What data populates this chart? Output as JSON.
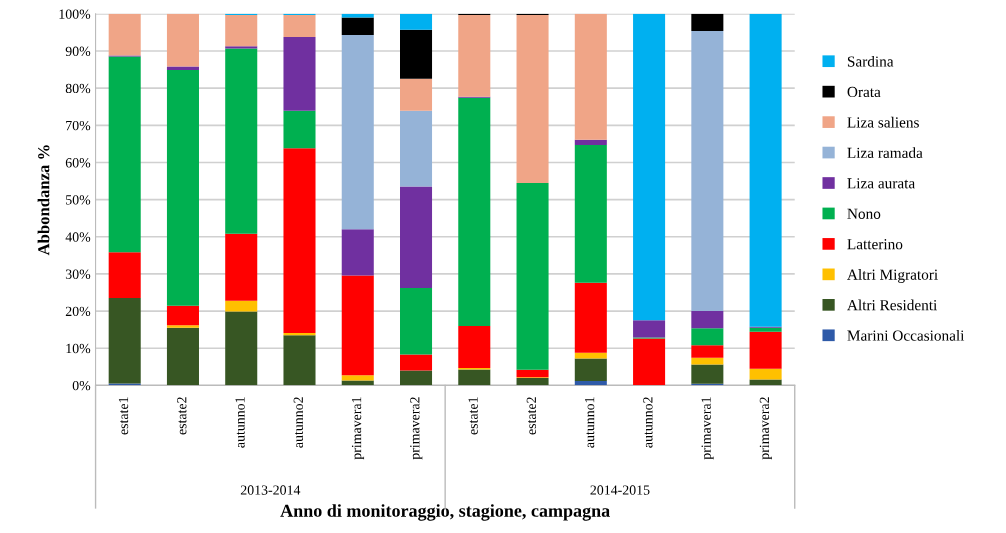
{
  "chart_data": {
    "type": "bar",
    "stacked": true,
    "xlabel": "Anno di monitoraggio, stagione, campagna",
    "ylabel": "Abbondanza %",
    "categories": [
      "estate1",
      "estate2",
      "autunno1",
      "autunno2",
      "primavera1",
      "primavera2",
      "estate1",
      "estate2",
      "autunno1",
      "autunno2",
      "primavera1",
      "primavera2"
    ],
    "annotations": [
      "2013-2014",
      "2014-2015"
    ],
    "ylim": [
      0,
      100
    ],
    "yticks": [
      {
        "value": 0,
        "label": "0%"
      },
      {
        "value": 10,
        "label": "10%"
      },
      {
        "value": 20,
        "label": "20%"
      },
      {
        "value": 30,
        "label": "30%"
      },
      {
        "value": 40,
        "label": "40%"
      },
      {
        "value": 50,
        "label": "50%"
      },
      {
        "value": 60,
        "label": "60%"
      },
      {
        "value": 70,
        "label": "70%"
      },
      {
        "value": 80,
        "label": "80%"
      },
      {
        "value": 90,
        "label": "90%"
      },
      {
        "value": 100,
        "label": "100%"
      }
    ],
    "grid": "y",
    "legend": "right",
    "series": [
      {
        "name": "Marini Occasionali",
        "color": "#2e5aa8",
        "values": [
          0.5,
          0,
          0,
          0,
          0,
          0,
          0,
          0,
          1.2,
          0,
          0.4,
          0
        ]
      },
      {
        "name": "Altri Residenti",
        "color": "#375623",
        "values": [
          23,
          15.5,
          19.9,
          13.5,
          1.3,
          4,
          4.3,
          2,
          6,
          0,
          5.2,
          1.6
        ]
      },
      {
        "name": "Altri Migratori",
        "color": "#ffc000",
        "values": [
          0,
          0.7,
          2.9,
          0.6,
          1.4,
          0,
          0.4,
          0.2,
          1.6,
          0,
          1.8,
          2.9
        ]
      },
      {
        "name": "Latterino",
        "color": "#ff0000",
        "values": [
          12.3,
          5.2,
          18,
          49.7,
          26.9,
          4.3,
          11.3,
          2,
          18.8,
          12.6,
          3.4,
          9.9
        ]
      },
      {
        "name": "Nono",
        "color": "#00b050",
        "values": [
          52.7,
          63.5,
          49.9,
          10.1,
          0,
          17.9,
          61.4,
          50.3,
          37.1,
          0.3,
          4.6,
          1.1
        ]
      },
      {
        "name": "Liza aurata",
        "color": "#7030a0",
        "values": [
          0.3,
          0.9,
          0.6,
          19.9,
          12.4,
          27.3,
          0.3,
          0,
          1.4,
          4.6,
          4.6,
          0.3
        ]
      },
      {
        "name": "Liza ramada",
        "color": "#95b3d7",
        "values": [
          0,
          0,
          0,
          0,
          52.3,
          20.4,
          0,
          0,
          0,
          0,
          75.4,
          0
        ]
      },
      {
        "name": "Liza saliens",
        "color": "#f0a587",
        "values": [
          11.2,
          14.2,
          8.4,
          5.9,
          0,
          8.6,
          22,
          45.2,
          33.9,
          0,
          0,
          0
        ]
      },
      {
        "name": "Orata",
        "color": "#000000",
        "values": [
          0,
          0,
          0,
          0,
          4.7,
          13.2,
          0.3,
          0.3,
          0,
          0,
          4.6,
          0
        ]
      },
      {
        "name": "Sardina",
        "color": "#00b0f0",
        "values": [
          0,
          0,
          0.3,
          0.3,
          1,
          4.3,
          0,
          0,
          0,
          82.5,
          0,
          84.2
        ]
      }
    ]
  }
}
